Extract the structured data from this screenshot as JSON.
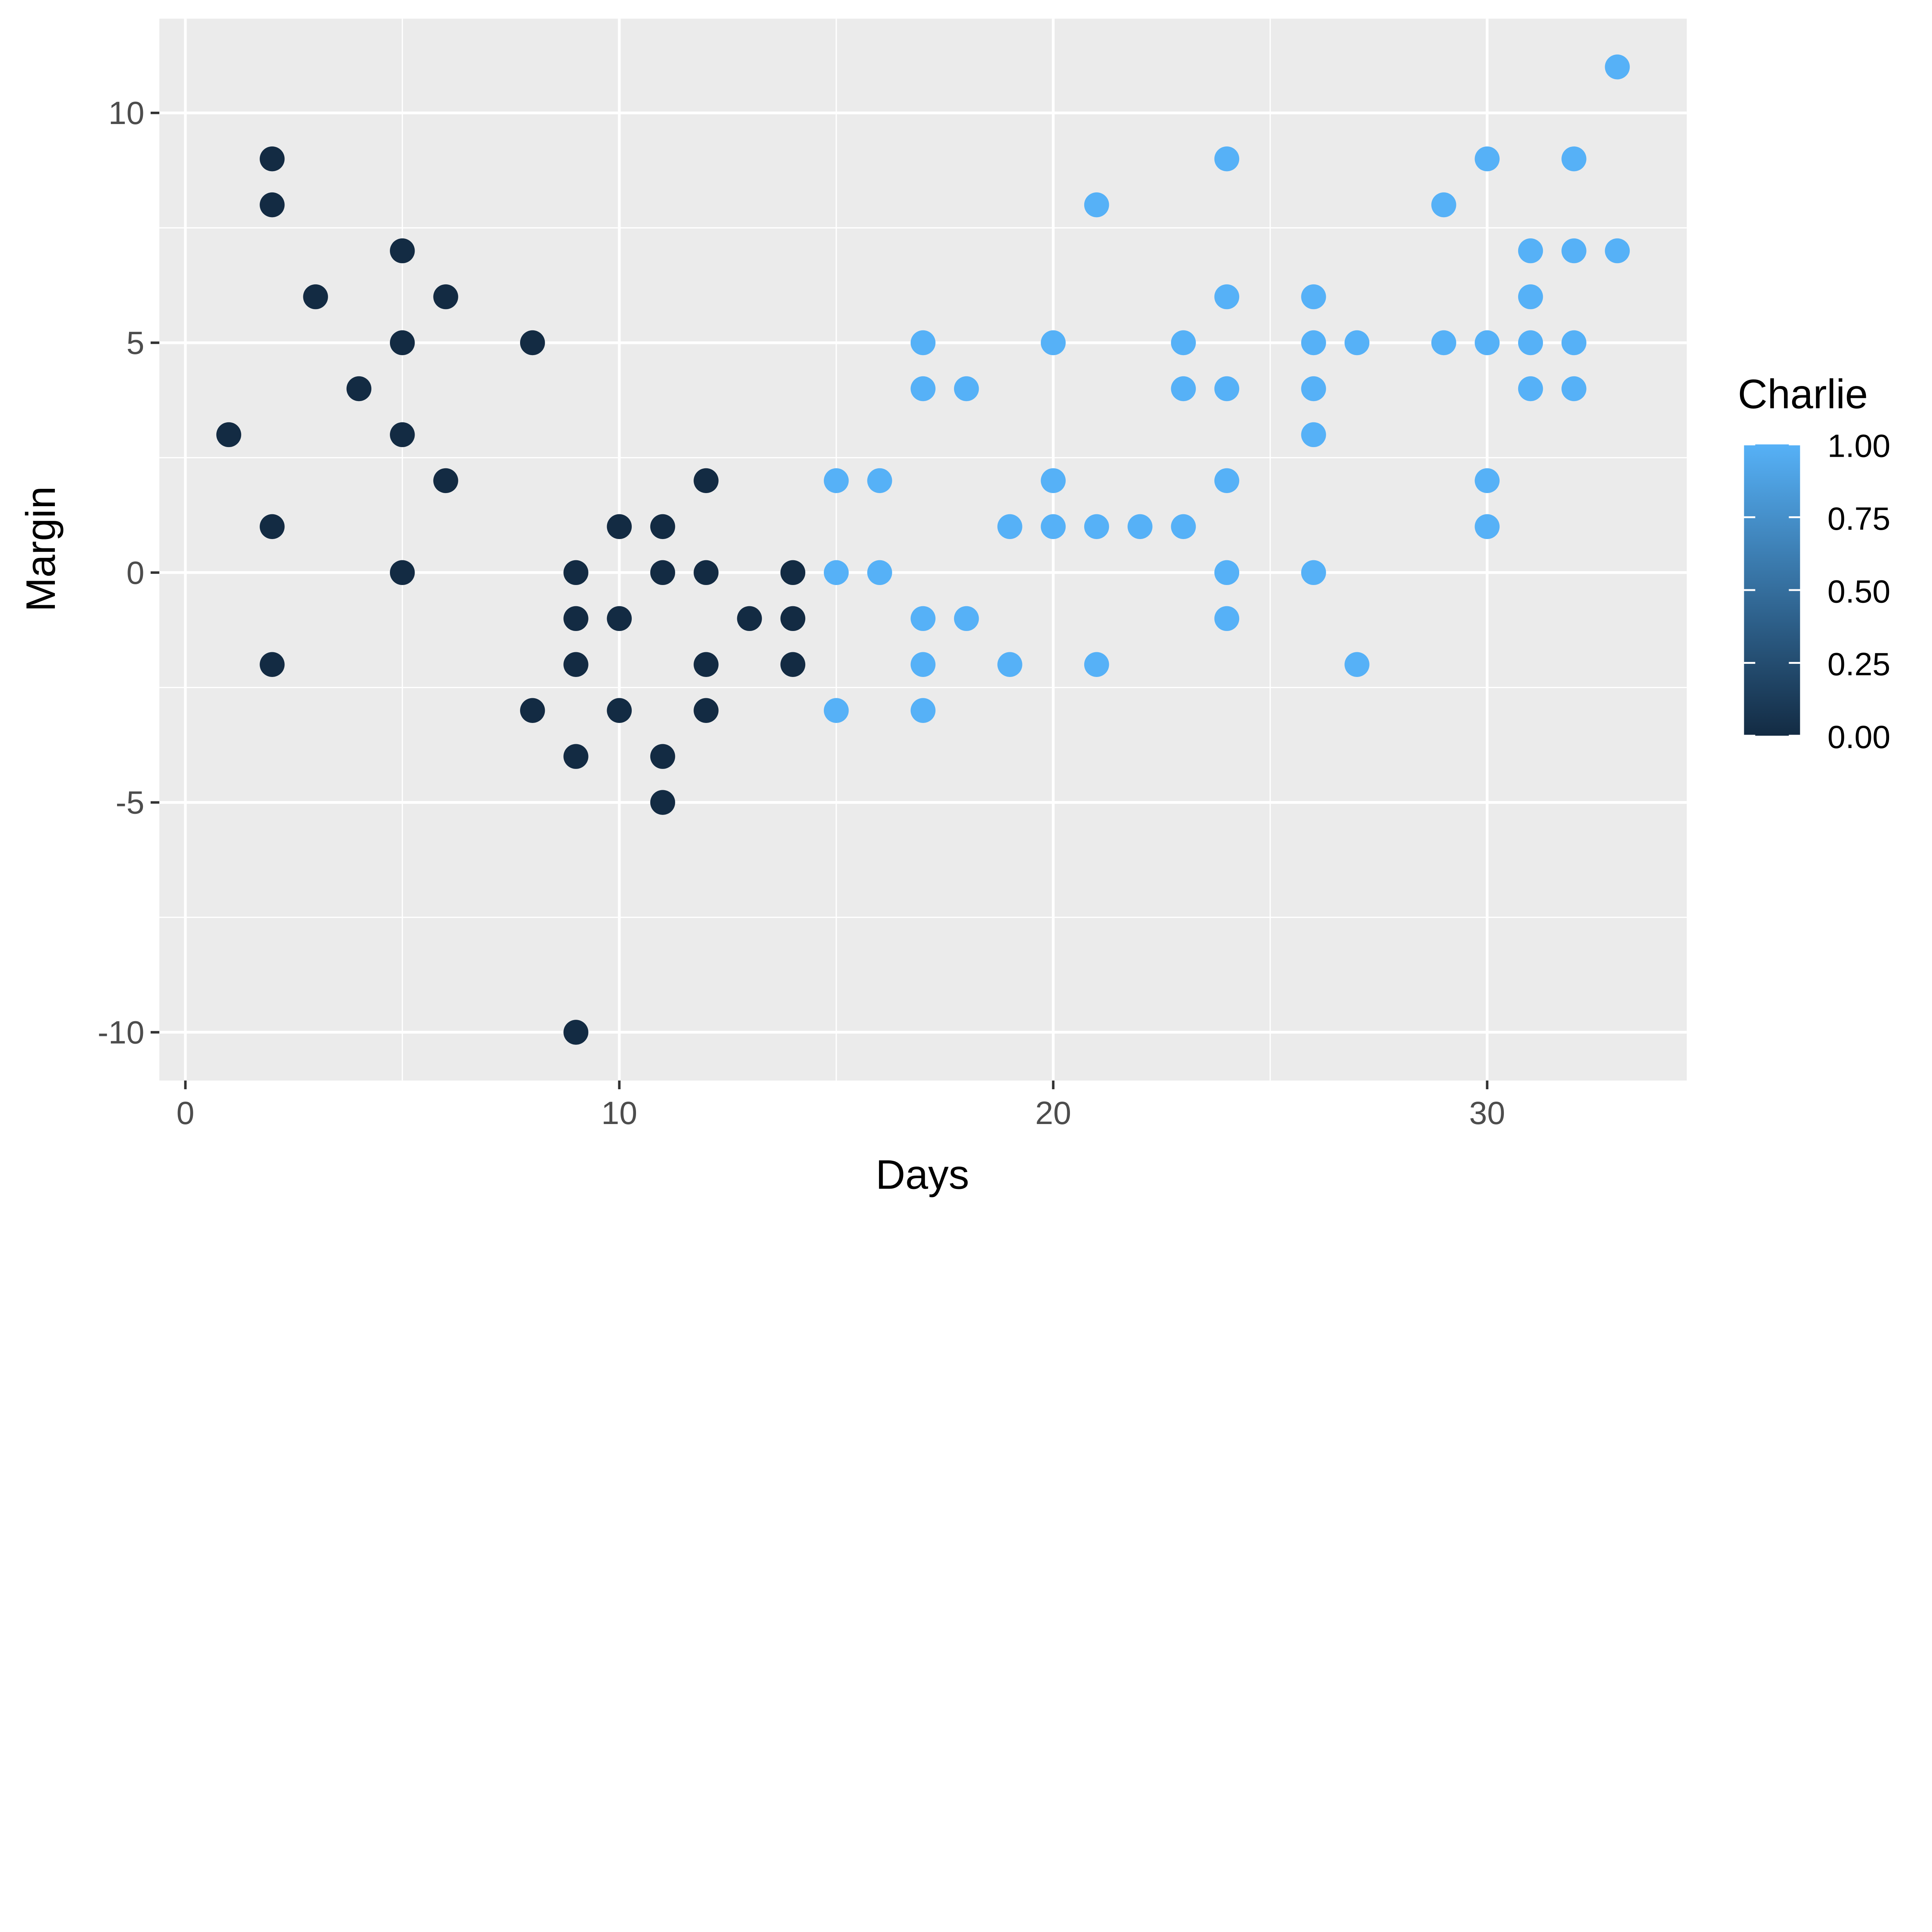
{
  "chart_data": {
    "type": "scatter",
    "title": "",
    "xlabel": "Days",
    "ylabel": "Margin",
    "xlim": [
      -0.6,
      34.6
    ],
    "ylim": [
      -11.05,
      12.05
    ],
    "x_ticks": [
      0,
      10,
      20,
      30
    ],
    "y_ticks": [
      -10,
      -5,
      0,
      5,
      10
    ],
    "x_tick_labels": [
      "0",
      "10",
      "20",
      "30"
    ],
    "y_tick_labels": [
      "-10",
      "-5",
      "0",
      "5",
      "10"
    ],
    "grid": true,
    "legend": {
      "title": "Charlie",
      "type": "colorbar",
      "placement": "right",
      "labels": [
        "1.00",
        "0.75",
        "0.50",
        "0.25",
        "0.00"
      ],
      "range": [
        0,
        1
      ],
      "low_color": "#132B43",
      "high_color": "#56B1F7"
    },
    "panel_background": "#EBEBEB",
    "points": [
      {
        "x": 1,
        "y": 3,
        "c": 0
      },
      {
        "x": 2,
        "y": 9,
        "c": 0
      },
      {
        "x": 2,
        "y": 8,
        "c": 0
      },
      {
        "x": 2,
        "y": 1,
        "c": 0
      },
      {
        "x": 2,
        "y": -2,
        "c": 0
      },
      {
        "x": 3,
        "y": 6,
        "c": 0
      },
      {
        "x": 4,
        "y": 4,
        "c": 0
      },
      {
        "x": 5,
        "y": 7,
        "c": 0
      },
      {
        "x": 5,
        "y": 5,
        "c": 0
      },
      {
        "x": 5,
        "y": 3,
        "c": 0
      },
      {
        "x": 5,
        "y": 0,
        "c": 0
      },
      {
        "x": 6,
        "y": 6,
        "c": 0
      },
      {
        "x": 6,
        "y": 2,
        "c": 0
      },
      {
        "x": 8,
        "y": 5,
        "c": 0
      },
      {
        "x": 8,
        "y": -3,
        "c": 0
      },
      {
        "x": 9,
        "y": 0,
        "c": 0
      },
      {
        "x": 9,
        "y": -1,
        "c": 0
      },
      {
        "x": 9,
        "y": -2,
        "c": 0
      },
      {
        "x": 9,
        "y": -4,
        "c": 0
      },
      {
        "x": 9,
        "y": -10,
        "c": 0
      },
      {
        "x": 10,
        "y": 1,
        "c": 0
      },
      {
        "x": 10,
        "y": -1,
        "c": 0
      },
      {
        "x": 10,
        "y": -3,
        "c": 0
      },
      {
        "x": 11,
        "y": 1,
        "c": 0
      },
      {
        "x": 11,
        "y": 0,
        "c": 0
      },
      {
        "x": 11,
        "y": -4,
        "c": 0
      },
      {
        "x": 11,
        "y": -5,
        "c": 0
      },
      {
        "x": 12,
        "y": 2,
        "c": 0
      },
      {
        "x": 12,
        "y": 0,
        "c": 0
      },
      {
        "x": 12,
        "y": -2,
        "c": 0
      },
      {
        "x": 12,
        "y": -3,
        "c": 0
      },
      {
        "x": 13,
        "y": -1,
        "c": 0
      },
      {
        "x": 14,
        "y": 0,
        "c": 0
      },
      {
        "x": 14,
        "y": -1,
        "c": 0
      },
      {
        "x": 14,
        "y": -2,
        "c": 0
      },
      {
        "x": 15,
        "y": 2,
        "c": 1
      },
      {
        "x": 15,
        "y": 0,
        "c": 1
      },
      {
        "x": 15,
        "y": -3,
        "c": 1
      },
      {
        "x": 16,
        "y": 2,
        "c": 1
      },
      {
        "x": 16,
        "y": 0,
        "c": 1
      },
      {
        "x": 17,
        "y": 5,
        "c": 1
      },
      {
        "x": 17,
        "y": 4,
        "c": 1
      },
      {
        "x": 17,
        "y": -1,
        "c": 1
      },
      {
        "x": 17,
        "y": -2,
        "c": 1
      },
      {
        "x": 17,
        "y": -3,
        "c": 1
      },
      {
        "x": 18,
        "y": 4,
        "c": 1
      },
      {
        "x": 18,
        "y": -1,
        "c": 1
      },
      {
        "x": 19,
        "y": 1,
        "c": 1
      },
      {
        "x": 19,
        "y": -2,
        "c": 1
      },
      {
        "x": 20,
        "y": 5,
        "c": 1
      },
      {
        "x": 20,
        "y": 2,
        "c": 1
      },
      {
        "x": 20,
        "y": 1,
        "c": 1
      },
      {
        "x": 21,
        "y": 8,
        "c": 1
      },
      {
        "x": 21,
        "y": 1,
        "c": 1
      },
      {
        "x": 21,
        "y": -2,
        "c": 1
      },
      {
        "x": 22,
        "y": 1,
        "c": 1
      },
      {
        "x": 23,
        "y": 5,
        "c": 1
      },
      {
        "x": 23,
        "y": 4,
        "c": 1
      },
      {
        "x": 23,
        "y": 1,
        "c": 1
      },
      {
        "x": 24,
        "y": 9,
        "c": 1
      },
      {
        "x": 24,
        "y": 6,
        "c": 1
      },
      {
        "x": 24,
        "y": 4,
        "c": 1
      },
      {
        "x": 24,
        "y": 2,
        "c": 1
      },
      {
        "x": 24,
        "y": 0,
        "c": 1
      },
      {
        "x": 24,
        "y": -1,
        "c": 1
      },
      {
        "x": 26,
        "y": 6,
        "c": 1
      },
      {
        "x": 26,
        "y": 5,
        "c": 1
      },
      {
        "x": 26,
        "y": 4,
        "c": 1
      },
      {
        "x": 26,
        "y": 3,
        "c": 1
      },
      {
        "x": 26,
        "y": 0,
        "c": 1
      },
      {
        "x": 27,
        "y": 5,
        "c": 1
      },
      {
        "x": 27,
        "y": -2,
        "c": 1
      },
      {
        "x": 29,
        "y": 8,
        "c": 1
      },
      {
        "x": 29,
        "y": 5,
        "c": 1
      },
      {
        "x": 30,
        "y": 9,
        "c": 1
      },
      {
        "x": 30,
        "y": 5,
        "c": 1
      },
      {
        "x": 30,
        "y": 2,
        "c": 1
      },
      {
        "x": 30,
        "y": 1,
        "c": 1
      },
      {
        "x": 31,
        "y": 7,
        "c": 1
      },
      {
        "x": 31,
        "y": 6,
        "c": 1
      },
      {
        "x": 31,
        "y": 5,
        "c": 1
      },
      {
        "x": 31,
        "y": 4,
        "c": 1
      },
      {
        "x": 32,
        "y": 9,
        "c": 1
      },
      {
        "x": 32,
        "y": 7,
        "c": 1
      },
      {
        "x": 32,
        "y": 5,
        "c": 1
      },
      {
        "x": 32,
        "y": 4,
        "c": 1
      },
      {
        "x": 33,
        "y": 11,
        "c": 1
      },
      {
        "x": 33,
        "y": 7,
        "c": 1
      }
    ]
  }
}
